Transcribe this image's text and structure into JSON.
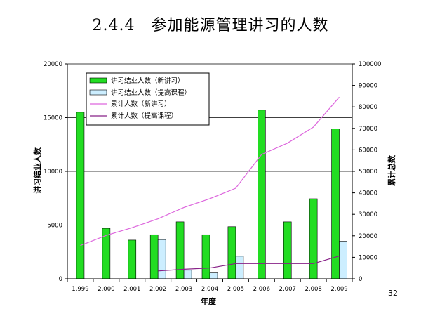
{
  "slide": {
    "title": "2.4.4　参加能源管理讲习的人数",
    "page_number": "32"
  },
  "colors": {
    "bar_new": "#22dd22",
    "bar_advanced": "#cceeff",
    "line_new": "#dd66dd",
    "line_advanced": "#882288"
  },
  "chart_data": {
    "type": "bar",
    "categories": [
      "1,999",
      "2,000",
      "2,001",
      "2,002",
      "2,003",
      "2,004",
      "2,005",
      "2,006",
      "2,007",
      "2,008",
      "2,009"
    ],
    "xlabel": "年度",
    "ylabel": "讲习结业人数",
    "y2label": "累计总数",
    "ylim": [
      0,
      20000
    ],
    "y2lim": [
      0,
      100000
    ],
    "yticks": [
      "0",
      "5000",
      "10000",
      "15000",
      "20000"
    ],
    "y2ticks": [
      "0",
      "10000",
      "20000",
      "30000",
      "40000",
      "50000",
      "60000",
      "70000",
      "80000",
      "90000",
      "100000"
    ],
    "grid": true,
    "legend_position": "top-left",
    "series": [
      {
        "name": "讲习结业人数（新讲习）",
        "type": "bar",
        "axis": "left",
        "values": [
          15500,
          4700,
          3600,
          4100,
          5300,
          4100,
          4850,
          15700,
          5300,
          7450,
          13950
        ]
      },
      {
        "name": "讲习结业人数（提高课程）",
        "type": "bar",
        "axis": "left",
        "values": [
          null,
          null,
          null,
          3650,
          800,
          550,
          2100,
          null,
          null,
          null,
          3500
        ]
      },
      {
        "name": "累计人数（新讲习）",
        "type": "line",
        "axis": "right",
        "values": [
          15500,
          20200,
          23800,
          27900,
          33200,
          37300,
          42150,
          57850,
          63150,
          70600,
          84550
        ]
      },
      {
        "name": "累计人数（提高课程）",
        "type": "line",
        "axis": "right",
        "values": [
          null,
          null,
          null,
          3650,
          4450,
          5000,
          7100,
          7100,
          7100,
          7100,
          10600
        ]
      }
    ]
  }
}
